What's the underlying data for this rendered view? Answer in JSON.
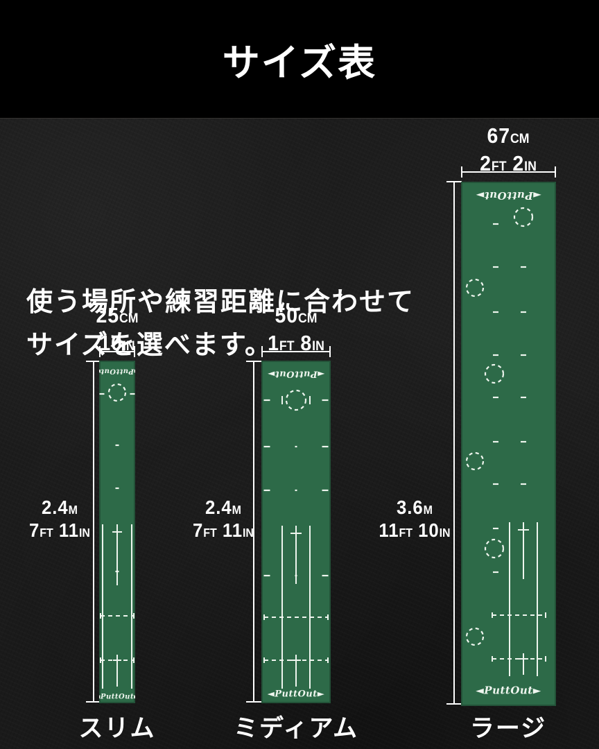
{
  "header": {
    "title": "サイズ表"
  },
  "intro": {
    "line1": "使う場所や練習距離に合わせて",
    "line2": "サイズを選べます。"
  },
  "brand": {
    "logo_text": "PuttOut",
    "arrow_left": "◄",
    "arrow_right": "►"
  },
  "colors": {
    "background": "#1c1c1c",
    "header": "#000000",
    "mat_green": "#2d6a48",
    "marking_white": "#eef5ee",
    "text_white": "#ffffff"
  },
  "mats": [
    {
      "id": "slim",
      "name": "スリム",
      "width_cm": "25CM",
      "width_imperial": "10IN",
      "length_m": "2.4M",
      "length_imperial": "7FT 11IN"
    },
    {
      "id": "medium",
      "name": "ミディアム",
      "width_cm": "50CM",
      "width_imperial": "1FT 8IN",
      "length_m": "2.4M",
      "length_imperial": "7FT 11IN"
    },
    {
      "id": "large",
      "name": "ラージ",
      "width_cm": "67CM",
      "width_imperial": "2FT 2IN",
      "length_m": "3.6M",
      "length_imperial": "11FT 10IN"
    }
  ]
}
